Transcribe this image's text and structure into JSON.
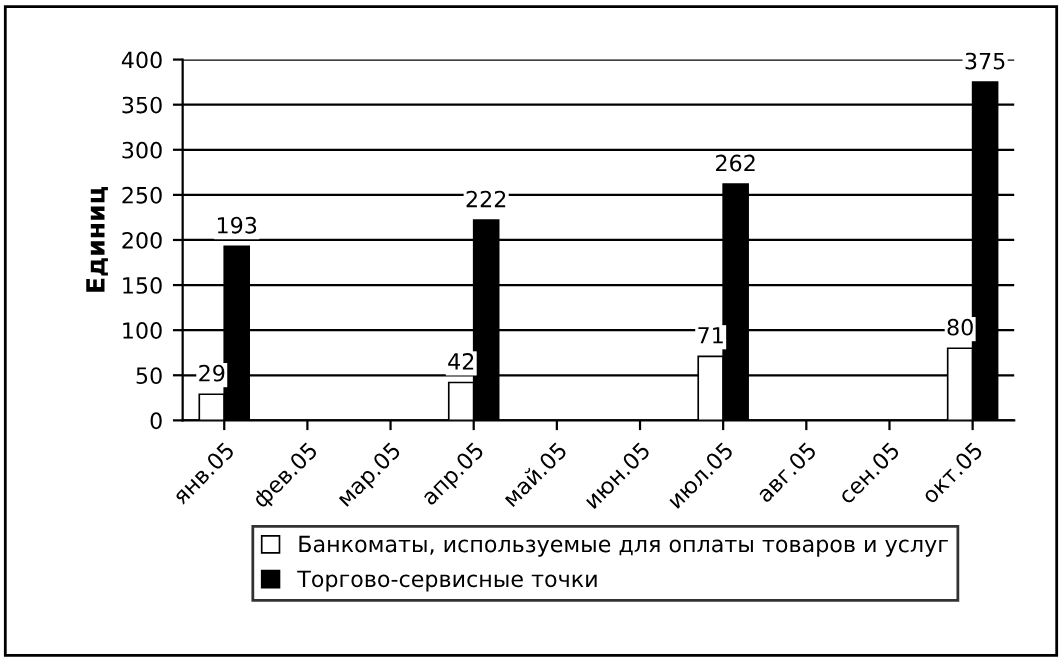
{
  "chart_data": {
    "type": "bar",
    "ylabel": "Единиц",
    "categories": [
      "янв.05",
      "фев.05",
      "мар.05",
      "апр.05",
      "май.05",
      "июн.05",
      "июл.05",
      "авг.05",
      "сен.05",
      "окт.05"
    ],
    "series": [
      {
        "name": "Банкоматы, используемые для оплаты товаров и услуг",
        "color": "#ffffff",
        "values": [
          29,
          null,
          null,
          42,
          null,
          null,
          71,
          null,
          null,
          80
        ]
      },
      {
        "name": "Торгово-сервисные точки",
        "color": "#000000",
        "values": [
          193,
          null,
          null,
          222,
          null,
          null,
          262,
          null,
          null,
          375
        ]
      }
    ],
    "ylim": [
      0,
      400
    ],
    "yticks": [
      0,
      50,
      100,
      150,
      200,
      250,
      300,
      350,
      400
    ],
    "grid": "y",
    "legend": "bottom",
    "data_labels": true
  }
}
